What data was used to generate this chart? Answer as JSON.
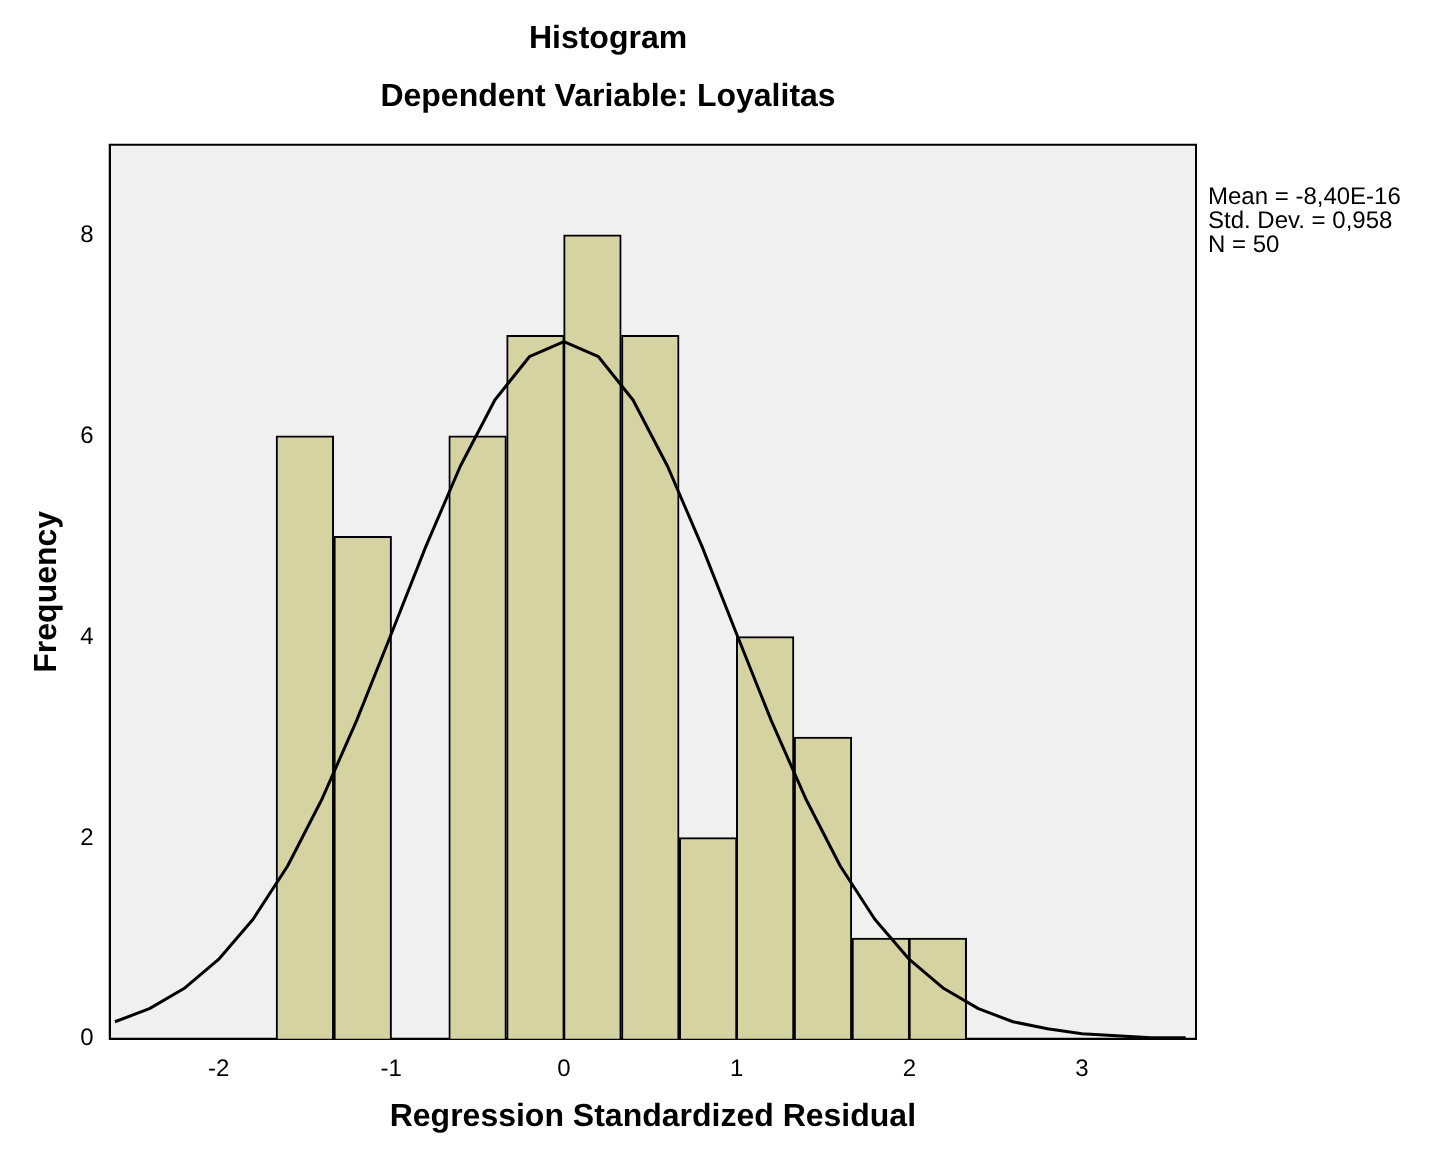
{
  "chart_data": {
    "type": "histogram",
    "title": "Histogram",
    "subtitle": "Dependent Variable: Loyalitas",
    "xlabel": "Regression Standardized Residual",
    "ylabel": "Frequency",
    "bins": [
      -1.67,
      -1.33,
      -1.0,
      -0.67,
      -0.33,
      0.0,
      0.33,
      0.67,
      1.0,
      1.33,
      1.67,
      2.0,
      2.33
    ],
    "values": [
      6,
      5,
      0,
      6,
      7,
      8,
      7,
      2,
      4,
      3,
      1,
      1
    ],
    "color": "#d6d3a2",
    "series": [
      {
        "type": "line",
        "color": "#000000",
        "marker": "none",
        "x": [
          -2.6,
          -2.4,
          -2.2,
          -2.0,
          -1.8,
          -1.6,
          -1.4,
          -1.2,
          -1.0,
          -0.8,
          -0.6,
          -0.4,
          -0.2,
          0.0,
          0.2,
          0.4,
          0.6,
          0.8,
          1.0,
          1.2,
          1.4,
          1.6,
          1.8,
          2.0,
          2.2,
          2.4,
          2.6,
          2.8,
          3.0,
          3.2,
          3.4,
          3.6
        ],
        "values": [
          0.17,
          0.3,
          0.5,
          0.79,
          1.19,
          1.72,
          2.39,
          3.17,
          4.03,
          4.9,
          5.7,
          6.36,
          6.79,
          6.94,
          6.79,
          6.36,
          5.7,
          4.9,
          4.03,
          3.17,
          2.39,
          1.72,
          1.19,
          0.79,
          0.5,
          0.3,
          0.17,
          0.1,
          0.05,
          0.03,
          0.01,
          0.01
        ]
      }
    ],
    "xlim": [
      -2.63,
      3.66
    ],
    "xticks": [
      -2,
      -1,
      0,
      1,
      2,
      3
    ],
    "ylim": [
      0,
      8.9
    ],
    "yticks": [
      0,
      2,
      4,
      6,
      8
    ],
    "grid": false,
    "legend": false,
    "annotations": [
      "Mean = -8,40E-16",
      "Std. Dev. = 0,958",
      "N = 50"
    ]
  }
}
